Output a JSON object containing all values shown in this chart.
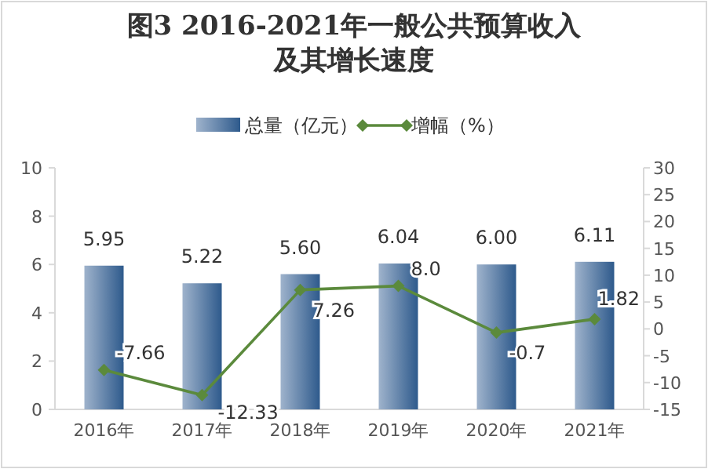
{
  "chart_data": {
    "type": "bar",
    "title": "图3 2016-2021年一般公共预算收入及其增长速度",
    "categories": [
      "2016年",
      "2017年",
      "2018年",
      "2019年",
      "2020年",
      "2021年"
    ],
    "series": [
      {
        "name": "总量（亿元）",
        "color": "#2e5a8c",
        "values": [
          5.95,
          5.22,
          5.6,
          6.04,
          6.0,
          6.11
        ],
        "value_labels": [
          "5.95",
          "5.22",
          "5.60",
          "6.04",
          "6.00",
          "6.11"
        ]
      },
      {
        "name": "增幅（%）",
        "type": "line",
        "axis": "y2",
        "color": "#5b8a3c",
        "marker": "diamond",
        "values": [
          -7.66,
          -12.33,
          7.26,
          8.0,
          -0.7,
          1.82
        ],
        "value_labels": [
          "-7.66",
          "-12.33",
          "7.26",
          "8.0",
          "-0.7",
          "1.82"
        ]
      }
    ],
    "ylim": [
      0,
      10
    ],
    "yticks": [
      0,
      2,
      4,
      6,
      8,
      10
    ],
    "y2lim": [
      -15,
      30
    ],
    "y2ticks": [
      -15,
      -10,
      -5,
      0,
      5,
      10,
      15,
      20,
      25,
      30
    ],
    "legend": "top",
    "grid": false
  }
}
